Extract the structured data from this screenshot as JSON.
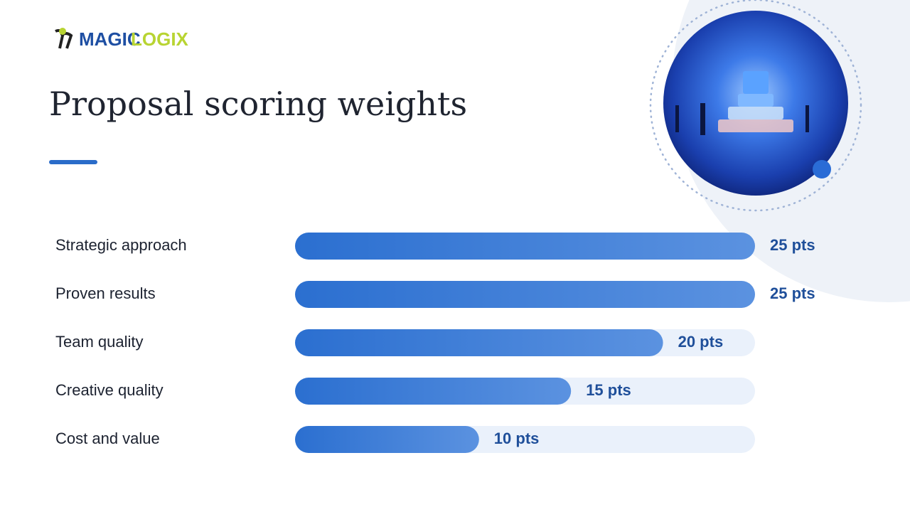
{
  "logo": {
    "first": "MAGIC",
    "second": "LOGIX"
  },
  "chart_data": {
    "type": "bar",
    "orientation": "horizontal",
    "title": "Proposal scoring weights",
    "categories": [
      "Strategic approach",
      "Proven results",
      "Team quality",
      "Creative quality",
      "Cost and value"
    ],
    "values": [
      25,
      25,
      20,
      15,
      10
    ],
    "value_labels": [
      "25 pts",
      "25 pts",
      "20 pts",
      "15 pts",
      "10 pts"
    ],
    "xlim": [
      0,
      25
    ],
    "color": "#2b6fd0",
    "track_color": "#eaf1fb",
    "grid": false
  }
}
